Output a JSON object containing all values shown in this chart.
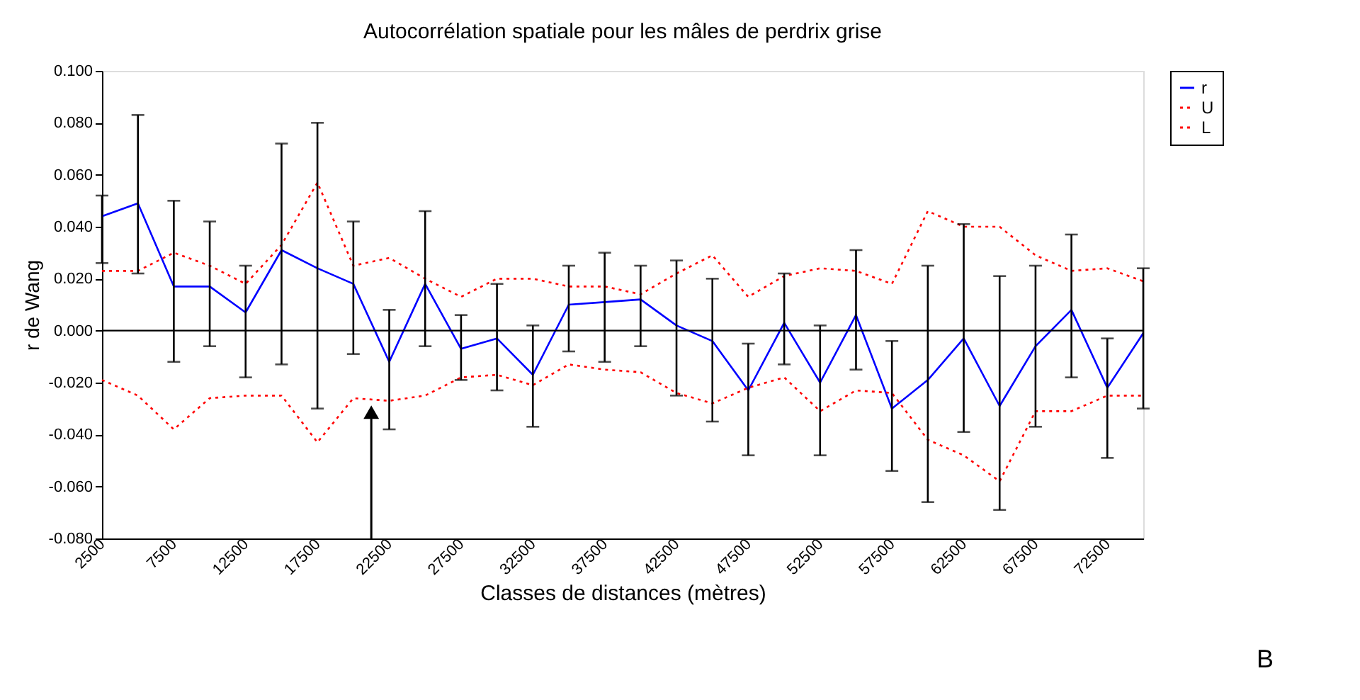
{
  "chart_data": {
    "type": "line",
    "title": "Autocorrélation spatiale pour les mâles de perdrix grise",
    "xlabel": "Classes de distances (mètres)",
    "ylabel": "r de Wang",
    "categories": [
      "2500",
      null,
      "7500",
      null,
      "12500",
      null,
      "17500",
      null,
      "22500",
      null,
      "27500",
      null,
      "32500",
      null,
      "37500",
      null,
      "42500",
      null,
      "47500",
      null,
      "52500",
      null,
      "57500",
      null,
      "62500",
      null,
      "67500",
      null,
      "72500",
      null
    ],
    "series": [
      {
        "name": "r",
        "color": "#0000ff",
        "line_style": "solid",
        "values": [
          0.044,
          0.049,
          0.017,
          0.017,
          0.007,
          0.031,
          0.024,
          0.018,
          -0.012,
          0.018,
          -0.007,
          -0.003,
          -0.017,
          0.01,
          0.011,
          0.012,
          0.002,
          -0.004,
          -0.023,
          0.003,
          -0.02,
          0.006,
          -0.03,
          -0.019,
          -0.003,
          -0.029,
          -0.006,
          0.008,
          -0.022,
          -0.001
        ],
        "errors": [
          [
            0.026,
            0.052
          ],
          [
            0.022,
            0.083
          ],
          [
            -0.012,
            0.05
          ],
          [
            -0.006,
            0.042
          ],
          [
            -0.018,
            0.025
          ],
          [
            -0.013,
            0.072
          ],
          [
            -0.03,
            0.08
          ],
          [
            -0.009,
            0.042
          ],
          [
            -0.038,
            0.008
          ],
          [
            -0.006,
            0.046
          ],
          [
            -0.019,
            0.006
          ],
          [
            -0.023,
            0.018
          ],
          [
            -0.037,
            0.002
          ],
          [
            -0.008,
            0.025
          ],
          [
            -0.012,
            0.03
          ],
          [
            -0.006,
            0.025
          ],
          [
            -0.025,
            0.027
          ],
          [
            -0.035,
            0.02
          ],
          [
            -0.048,
            -0.005
          ],
          [
            -0.013,
            0.022
          ],
          [
            -0.048,
            0.002
          ],
          [
            -0.015,
            0.031
          ],
          [
            -0.054,
            -0.004
          ],
          [
            -0.066,
            0.025
          ],
          [
            -0.039,
            0.041
          ],
          [
            -0.069,
            0.021
          ],
          [
            -0.037,
            0.025
          ],
          [
            -0.018,
            0.037
          ],
          [
            -0.049,
            -0.003
          ],
          [
            -0.03,
            0.024
          ]
        ]
      },
      {
        "name": "U",
        "color": "#ff0000",
        "line_style": "dotted",
        "values": [
          0.023,
          0.023,
          0.03,
          0.025,
          0.018,
          0.033,
          0.057,
          0.025,
          0.028,
          0.02,
          0.013,
          0.02,
          0.02,
          0.017,
          0.017,
          0.014,
          0.022,
          0.029,
          0.013,
          0.021,
          0.024,
          0.023,
          0.018,
          0.046,
          0.04,
          0.04,
          0.029,
          0.023,
          0.024,
          0.019
        ]
      },
      {
        "name": "L",
        "color": "#ff0000",
        "line_style": "dotted",
        "values": [
          -0.019,
          -0.025,
          -0.038,
          -0.026,
          -0.025,
          -0.025,
          -0.043,
          -0.026,
          -0.027,
          -0.025,
          -0.018,
          -0.017,
          -0.021,
          -0.013,
          -0.015,
          -0.016,
          -0.024,
          -0.028,
          -0.022,
          -0.018,
          -0.031,
          -0.023,
          -0.024,
          -0.042,
          -0.048,
          -0.058,
          -0.031,
          -0.031,
          -0.025,
          -0.025
        ]
      }
    ],
    "ylim": [
      -0.08,
      0.1
    ],
    "yticks": [
      {
        "value": -0.08,
        "label": "-0.080"
      },
      {
        "value": -0.06,
        "label": "-0.060"
      },
      {
        "value": -0.04,
        "label": "-0.040"
      },
      {
        "value": -0.02,
        "label": "-0.020"
      },
      {
        "value": 0,
        "label": "0.000"
      },
      {
        "value": 0.02,
        "label": "0.020"
      },
      {
        "value": 0.04,
        "label": "0.040"
      },
      {
        "value": 0.06,
        "label": "0.060"
      },
      {
        "value": 0.08,
        "label": "0.080"
      },
      {
        "value": 0.1,
        "label": "0.100"
      }
    ],
    "ref_lines": [
      {
        "axis": "y",
        "value": 0,
        "color": "#000000"
      }
    ],
    "grid": false,
    "legend": "right",
    "marker": "none",
    "annotations": [
      "B"
    ]
  }
}
